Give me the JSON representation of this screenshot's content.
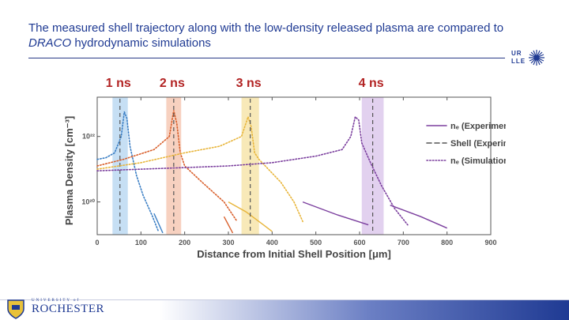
{
  "slide": {
    "title_part1": "The measured shell trajectory along with the low-density released plasma are compared to ",
    "title_italic": "DRACO",
    "title_part2": " hydrodynamic simulations",
    "logo_top": "UR",
    "logo_bottom": "LLE",
    "university_small": "UNIVERSITY of",
    "university_name": "ROCHESTER"
  },
  "colors": {
    "title": "#1f3a93",
    "ns_label": "#b22222",
    "series": [
      "#3a7ec4",
      "#d95f2b",
      "#e8b53a",
      "#7b3f9e"
    ],
    "bands": [
      "#bcd9f2",
      "#f6c9b5",
      "#f7e5ac",
      "#ddc9ec"
    ]
  },
  "chart_data": {
    "type": "line",
    "xlabel": "Distance from Initial Shell Position [μm]",
    "ylabel": "Plasma Density [cm⁻³]",
    "x_ticks": [
      0,
      100,
      200,
      300,
      400,
      500,
      600,
      700,
      800,
      900
    ],
    "y_ticks": [
      {
        "value": 20,
        "label": "10²⁰"
      },
      {
        "value": 22,
        "label": "10²²"
      }
    ],
    "xlim": [
      0,
      900
    ],
    "ylim_log10": [
      19.0,
      23.2
    ],
    "y_scale": "log",
    "legend": [
      {
        "label": "nₑ (Experiment)",
        "style": "solid"
      },
      {
        "label": "Shell (Experiment)",
        "style": "dashed"
      },
      {
        "label": "nₑ (Simulation)",
        "style": "dotted"
      }
    ],
    "legend_placement": "top-right",
    "times": [
      {
        "label": "1 ns",
        "shell_position": 52,
        "shell_band": [
          35,
          70
        ],
        "experiment": [
          {
            "x": 130,
            "y": 19.65
          },
          {
            "x": 150,
            "y": 19.05
          }
        ],
        "simulation": [
          {
            "x": 0,
            "y": 21.3
          },
          {
            "x": 20,
            "y": 21.35
          },
          {
            "x": 40,
            "y": 21.5
          },
          {
            "x": 55,
            "y": 22.0
          },
          {
            "x": 62,
            "y": 22.75
          },
          {
            "x": 68,
            "y": 22.55
          },
          {
            "x": 75,
            "y": 21.7
          },
          {
            "x": 90,
            "y": 20.8
          },
          {
            "x": 105,
            "y": 20.2
          },
          {
            "x": 125,
            "y": 19.6
          },
          {
            "x": 140,
            "y": 19.1
          }
        ]
      },
      {
        "label": "2 ns",
        "shell_position": 175,
        "shell_band": [
          158,
          192
        ],
        "experiment": [
          {
            "x": 290,
            "y": 19.55
          },
          {
            "x": 300,
            "y": 19.3
          },
          {
            "x": 310,
            "y": 19.05
          }
        ],
        "simulation": [
          {
            "x": 0,
            "y": 21.1
          },
          {
            "x": 60,
            "y": 21.3
          },
          {
            "x": 130,
            "y": 21.6
          },
          {
            "x": 165,
            "y": 22.0
          },
          {
            "x": 175,
            "y": 22.8
          },
          {
            "x": 182,
            "y": 22.4
          },
          {
            "x": 190,
            "y": 21.5
          },
          {
            "x": 200,
            "y": 21.1
          },
          {
            "x": 240,
            "y": 20.6
          },
          {
            "x": 290,
            "y": 20.0
          },
          {
            "x": 320,
            "y": 19.4
          }
        ]
      },
      {
        "label": "3 ns",
        "shell_position": 350,
        "shell_band": [
          330,
          370
        ],
        "experiment": [
          {
            "x": 300,
            "y": 20.0
          },
          {
            "x": 340,
            "y": 19.7
          },
          {
            "x": 380,
            "y": 19.3
          },
          {
            "x": 400,
            "y": 19.1
          }
        ],
        "simulation": [
          {
            "x": 0,
            "y": 21.0
          },
          {
            "x": 100,
            "y": 21.2
          },
          {
            "x": 200,
            "y": 21.5
          },
          {
            "x": 280,
            "y": 21.7
          },
          {
            "x": 330,
            "y": 22.0
          },
          {
            "x": 345,
            "y": 22.6
          },
          {
            "x": 352,
            "y": 22.3
          },
          {
            "x": 360,
            "y": 21.5
          },
          {
            "x": 370,
            "y": 21.3
          },
          {
            "x": 420,
            "y": 20.6
          },
          {
            "x": 450,
            "y": 20.0
          },
          {
            "x": 470,
            "y": 19.4
          }
        ]
      },
      {
        "label": "4 ns",
        "shell_position": 630,
        "shell_band": [
          605,
          655
        ],
        "experiment_a": [
          {
            "x": 470,
            "y": 20.0
          },
          {
            "x": 550,
            "y": 19.6
          },
          {
            "x": 620,
            "y": 19.3
          }
        ],
        "experiment": [
          {
            "x": 670,
            "y": 19.9
          },
          {
            "x": 740,
            "y": 19.55
          },
          {
            "x": 800,
            "y": 19.2
          }
        ],
        "simulation": [
          {
            "x": 0,
            "y": 20.95
          },
          {
            "x": 100,
            "y": 21.0
          },
          {
            "x": 200,
            "y": 21.05
          },
          {
            "x": 300,
            "y": 21.1
          },
          {
            "x": 400,
            "y": 21.2
          },
          {
            "x": 500,
            "y": 21.4
          },
          {
            "x": 560,
            "y": 21.6
          },
          {
            "x": 580,
            "y": 22.0
          },
          {
            "x": 590,
            "y": 22.6
          },
          {
            "x": 598,
            "y": 22.5
          },
          {
            "x": 605,
            "y": 21.8
          },
          {
            "x": 625,
            "y": 21.2
          },
          {
            "x": 650,
            "y": 20.5
          },
          {
            "x": 680,
            "y": 19.8
          },
          {
            "x": 710,
            "y": 19.3
          }
        ]
      }
    ]
  }
}
